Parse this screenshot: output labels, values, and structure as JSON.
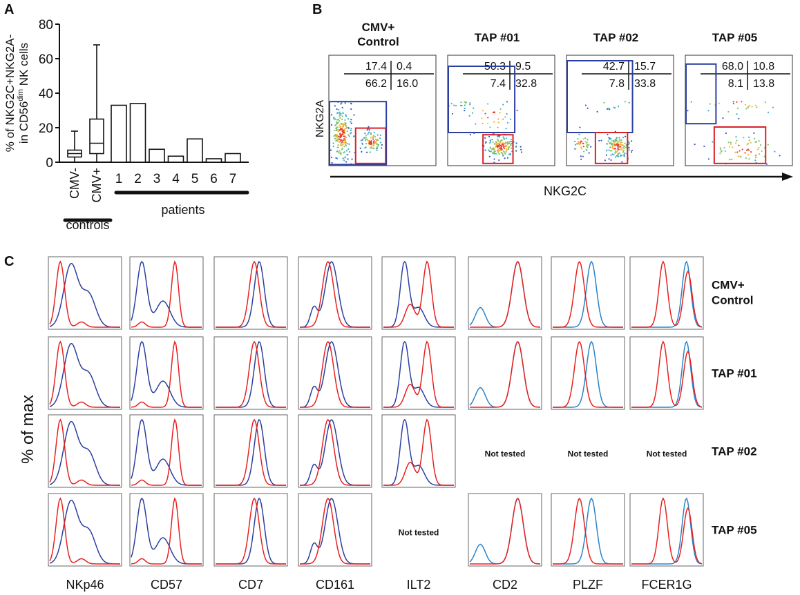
{
  "panel_labels": {
    "a": "A",
    "b": "B",
    "c": "C"
  },
  "colors": {
    "red_curve": "#e8201e",
    "blue_curve_dark": "#2b3f9e",
    "blue_curve_light": "#2a82c9",
    "gate_blue": "#2b3f9e",
    "gate_red": "#d92027",
    "axis": "#111111"
  },
  "panel_a": {
    "ylabel_line1": "% of NKG2C+NKG2A-",
    "ylabel_line2_pre": "in CD56",
    "ylabel_line2_sup": "dim",
    "ylabel_line2_post": " NK cells",
    "group_controls": "controls",
    "group_patients": "patients"
  },
  "chart_data": {
    "type": "bar",
    "title": "",
    "ylabel": "% of NKG2C+NKG2A- in CD56dim NK cells",
    "ylim": [
      0,
      80
    ],
    "yticks": [
      0,
      20,
      40,
      60,
      80
    ],
    "boxes": [
      {
        "name": "CMV-",
        "whisker_low": 0,
        "q1": 3,
        "median": 5,
        "q3": 7,
        "whisker_high": 18
      },
      {
        "name": "CMV+",
        "whisker_low": 0,
        "q1": 5,
        "median": 11,
        "q3": 25,
        "whisker_high": 68
      }
    ],
    "categories": [
      "1",
      "2",
      "3",
      "4",
      "5",
      "6",
      "7"
    ],
    "values": [
      33,
      34,
      7.5,
      3.5,
      13.5,
      2,
      5
    ]
  },
  "panel_b": {
    "y_axis_label": "NKG2A",
    "x_axis_label": "NKG2C",
    "plots": [
      {
        "title_line1": "CMV+",
        "title_line2": "Control",
        "q_ul": "17.4",
        "q_ur": "0.4",
        "q_ll": "66.2",
        "q_lr": "16.0"
      },
      {
        "title_line1": "TAP #01",
        "title_line2": "",
        "q_ul": "50.3",
        "q_ur": "9.5",
        "q_ll": "7.4",
        "q_lr": "32.8"
      },
      {
        "title_line1": "TAP #02",
        "title_line2": "",
        "q_ul": "42.7",
        "q_ur": "15.7",
        "q_ll": "7.8",
        "q_lr": "33.8"
      },
      {
        "title_line1": "TAP #05",
        "title_line2": "",
        "q_ul": "68.0",
        "q_ur": "10.8",
        "q_ll": "8.1",
        "q_lr": "13.8"
      }
    ]
  },
  "panel_c": {
    "y_axis_label": "% of max",
    "columns": [
      "NKp46",
      "CD57",
      "CD7",
      "CD161",
      "ILT2",
      "CD2",
      "PLZF",
      "FCER1G"
    ],
    "row_labels": [
      {
        "line1": "CMV+",
        "line2": "Control"
      },
      {
        "line1": "TAP #01",
        "line2": ""
      },
      {
        "line1": "TAP #02",
        "line2": ""
      },
      {
        "line1": "TAP #05",
        "line2": ""
      }
    ],
    "not_tested_label": "Not tested",
    "not_tested_cells": [
      [
        2,
        5
      ],
      [
        2,
        6
      ],
      [
        2,
        7
      ],
      [
        3,
        4
      ]
    ]
  }
}
